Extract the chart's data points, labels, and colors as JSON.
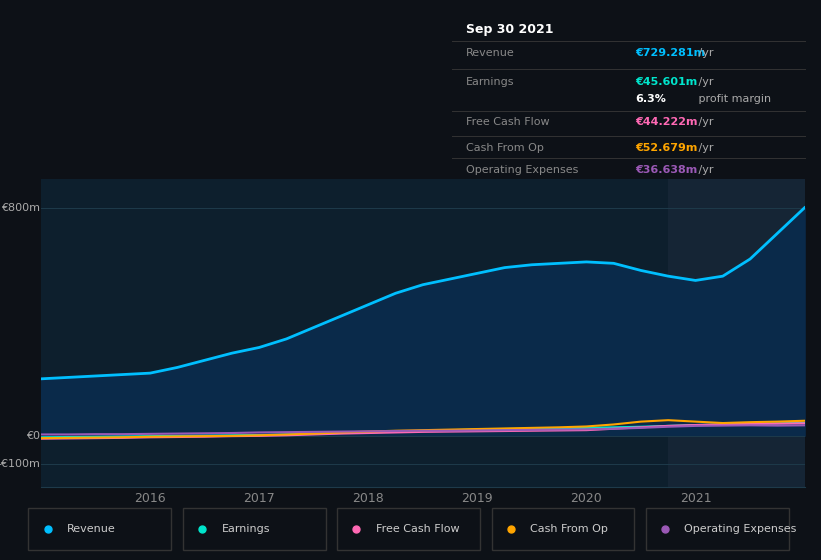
{
  "background_color": "#0d1117",
  "plot_bg_color": "#0d1f2d",
  "grid_color": "#1e3a4a",
  "title_box": {
    "date": "Sep 30 2021",
    "rows": [
      {
        "label": "Revenue",
        "value": "€729.281m /yr",
        "value_color": "#00bfff"
      },
      {
        "label": "Earnings",
        "value": "€45.601m /yr",
        "value_color": "#00e5cc"
      },
      {
        "label": "",
        "value": "6.3% profit margin",
        "value_color": "#ffffff"
      },
      {
        "label": "Free Cash Flow",
        "value": "€44.222m /yr",
        "value_color": "#ff69b4"
      },
      {
        "label": "Cash From Op",
        "value": "€52.679m /yr",
        "value_color": "#ffa500"
      },
      {
        "label": "Operating Expenses",
        "value": "€36.638m /yr",
        "value_color": "#9b59b6"
      }
    ]
  },
  "yticks": [
    "€800m",
    "€0",
    "-€100m"
  ],
  "ytick_values": [
    800,
    0,
    -100
  ],
  "ylim": [
    -180,
    900
  ],
  "xlim": [
    2015.0,
    2022.0
  ],
  "xtick_labels": [
    "2016",
    "2017",
    "2018",
    "2019",
    "2020",
    "2021"
  ],
  "xtick_positions": [
    2016,
    2017,
    2018,
    2019,
    2020,
    2021
  ],
  "series": {
    "revenue": {
      "color": "#00bfff",
      "fill_color": "#0a2a4a",
      "label": "Revenue",
      "x": [
        2015.0,
        2015.25,
        2015.5,
        2015.75,
        2016.0,
        2016.25,
        2016.5,
        2016.75,
        2017.0,
        2017.25,
        2017.5,
        2017.75,
        2018.0,
        2018.25,
        2018.5,
        2018.75,
        2019.0,
        2019.25,
        2019.5,
        2019.75,
        2020.0,
        2020.25,
        2020.5,
        2020.75,
        2021.0,
        2021.25,
        2021.5,
        2021.75,
        2022.0
      ],
      "y": [
        200,
        205,
        210,
        215,
        220,
        240,
        265,
        290,
        310,
        340,
        380,
        420,
        460,
        500,
        530,
        550,
        570,
        590,
        600,
        605,
        610,
        605,
        580,
        560,
        545,
        560,
        620,
        710,
        800
      ]
    },
    "earnings": {
      "color": "#00e5cc",
      "label": "Earnings",
      "x": [
        2015.0,
        2015.25,
        2015.5,
        2015.75,
        2016.0,
        2016.25,
        2016.5,
        2016.75,
        2017.0,
        2017.25,
        2017.5,
        2017.75,
        2018.0,
        2018.25,
        2018.5,
        2018.75,
        2019.0,
        2019.25,
        2019.5,
        2019.75,
        2020.0,
        2020.25,
        2020.5,
        2020.75,
        2021.0,
        2021.25,
        2021.5,
        2021.75,
        2022.0
      ],
      "y": [
        -5,
        -4,
        -3,
        -2,
        -1,
        0,
        1,
        2,
        3,
        5,
        8,
        10,
        12,
        15,
        18,
        20,
        22,
        24,
        25,
        26,
        28,
        30,
        32,
        35,
        38,
        40,
        43,
        44,
        46
      ]
    },
    "free_cash_flow": {
      "color": "#ff69b4",
      "label": "Free Cash Flow",
      "x": [
        2015.0,
        2015.25,
        2015.5,
        2015.75,
        2016.0,
        2016.25,
        2016.5,
        2016.75,
        2017.0,
        2017.25,
        2017.5,
        2017.75,
        2018.0,
        2018.25,
        2018.5,
        2018.75,
        2019.0,
        2019.25,
        2019.5,
        2019.75,
        2020.0,
        2020.25,
        2020.5,
        2020.75,
        2021.0,
        2021.25,
        2021.5,
        2021.75,
        2022.0
      ],
      "y": [
        -10,
        -9,
        -8,
        -7,
        -5,
        -4,
        -3,
        -1,
        0,
        2,
        5,
        8,
        10,
        12,
        14,
        15,
        16,
        17,
        18,
        19,
        20,
        25,
        30,
        35,
        38,
        40,
        42,
        43,
        44
      ]
    },
    "cash_from_op": {
      "color": "#ffa500",
      "label": "Cash From Op",
      "x": [
        2015.0,
        2015.25,
        2015.5,
        2015.75,
        2016.0,
        2016.25,
        2016.5,
        2016.75,
        2017.0,
        2017.25,
        2017.5,
        2017.75,
        2018.0,
        2018.25,
        2018.5,
        2018.75,
        2019.0,
        2019.25,
        2019.5,
        2019.75,
        2020.0,
        2020.25,
        2020.5,
        2020.75,
        2021.0,
        2021.25,
        2021.5,
        2021.75,
        2022.0
      ],
      "y": [
        -8,
        -7,
        -6,
        -5,
        -3,
        -2,
        -1,
        0,
        2,
        5,
        8,
        12,
        15,
        18,
        20,
        22,
        24,
        26,
        28,
        30,
        33,
        40,
        50,
        55,
        50,
        45,
        48,
        50,
        53
      ]
    },
    "operating_expenses": {
      "color": "#9b59b6",
      "label": "Operating Expenses",
      "x": [
        2015.0,
        2015.25,
        2015.5,
        2015.75,
        2016.0,
        2016.25,
        2016.5,
        2016.75,
        2017.0,
        2017.25,
        2017.5,
        2017.75,
        2018.0,
        2018.25,
        2018.5,
        2018.75,
        2019.0,
        2019.25,
        2019.5,
        2019.75,
        2020.0,
        2020.25,
        2020.5,
        2020.75,
        2021.0,
        2021.25,
        2021.5,
        2021.75,
        2022.0
      ],
      "y": [
        5,
        5,
        6,
        6,
        7,
        8,
        9,
        10,
        12,
        13,
        14,
        15,
        16,
        17,
        18,
        18,
        19,
        20,
        21,
        22,
        23,
        25,
        28,
        32,
        35,
        36,
        37,
        36,
        37
      ]
    }
  },
  "highlight_x_start": 2020.75,
  "highlight_x_end": 2022.0,
  "highlight_color": "#152535",
  "legend_items": [
    {
      "label": "Revenue",
      "color": "#00bfff"
    },
    {
      "label": "Earnings",
      "color": "#00e5cc"
    },
    {
      "label": "Free Cash Flow",
      "color": "#ff69b4"
    },
    {
      "label": "Cash From Op",
      "color": "#ffa500"
    },
    {
      "label": "Operating Expenses",
      "color": "#9b59b6"
    }
  ]
}
